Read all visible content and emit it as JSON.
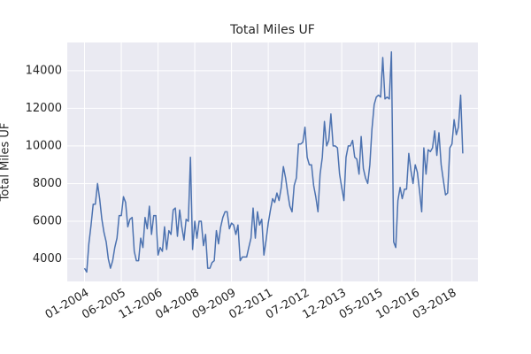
{
  "chart_data": {
    "type": "line",
    "title": "Total Miles UF",
    "ylabel": "Total Miles UF",
    "x": [
      "01-2004",
      "02-2004",
      "03-2004",
      "04-2004",
      "05-2004",
      "06-2004",
      "07-2004",
      "08-2004",
      "09-2004",
      "10-2004",
      "11-2004",
      "12-2004",
      "01-2005",
      "02-2005",
      "03-2005",
      "04-2005",
      "05-2005",
      "06-2005",
      "07-2005",
      "08-2005",
      "09-2005",
      "10-2005",
      "11-2005",
      "12-2005",
      "01-2006",
      "02-2006",
      "03-2006",
      "04-2006",
      "05-2006",
      "06-2006",
      "07-2006",
      "08-2006",
      "09-2006",
      "10-2006",
      "11-2006",
      "12-2006",
      "01-2007",
      "02-2007",
      "03-2007",
      "04-2007",
      "05-2007",
      "06-2007",
      "07-2007",
      "08-2007",
      "09-2007",
      "10-2007",
      "11-2007",
      "12-2007",
      "01-2008",
      "02-2008",
      "03-2008",
      "04-2008",
      "05-2008",
      "06-2008",
      "07-2008",
      "08-2008",
      "09-2008",
      "10-2008",
      "11-2008",
      "12-2008",
      "01-2009",
      "02-2009",
      "03-2009",
      "04-2009",
      "05-2009",
      "06-2009",
      "07-2009",
      "08-2009",
      "09-2009",
      "10-2009",
      "11-2009",
      "12-2009",
      "01-2010",
      "02-2010",
      "03-2010",
      "04-2010",
      "05-2010",
      "06-2010",
      "07-2010",
      "08-2010",
      "09-2010",
      "10-2010",
      "11-2010",
      "12-2010",
      "01-2011",
      "02-2011",
      "03-2011",
      "04-2011",
      "05-2011",
      "06-2011",
      "07-2011",
      "08-2011",
      "09-2011",
      "10-2011",
      "11-2011",
      "12-2011",
      "01-2012",
      "02-2012",
      "03-2012",
      "04-2012",
      "05-2012",
      "06-2012",
      "07-2012",
      "08-2012",
      "09-2012",
      "10-2012",
      "11-2012",
      "12-2012",
      "01-2013",
      "02-2013",
      "03-2013",
      "04-2013",
      "05-2013",
      "06-2013",
      "07-2013",
      "08-2013",
      "09-2013",
      "10-2013",
      "11-2013",
      "12-2013",
      "01-2014",
      "02-2014",
      "03-2014",
      "04-2014",
      "05-2014",
      "06-2014",
      "07-2014",
      "08-2014",
      "09-2014",
      "10-2014",
      "11-2014",
      "12-2014",
      "01-2015",
      "02-2015",
      "03-2015",
      "04-2015",
      "05-2015",
      "06-2015",
      "07-2015",
      "08-2015",
      "09-2015",
      "10-2015",
      "11-2015",
      "12-2015",
      "01-2016",
      "02-2016",
      "03-2016",
      "04-2016",
      "05-2016",
      "06-2016",
      "07-2016",
      "08-2016",
      "09-2016",
      "10-2016",
      "11-2016",
      "12-2016",
      "01-2017",
      "02-2017",
      "03-2017",
      "04-2017",
      "05-2017",
      "06-2017",
      "07-2017",
      "08-2017",
      "09-2017",
      "10-2017",
      "11-2017",
      "12-2017",
      "01-2018",
      "02-2018",
      "03-2018",
      "04-2018",
      "05-2018",
      "06-2018",
      "07-2018",
      "08-2018"
    ],
    "series": [
      {
        "name": "Total Miles UF",
        "color": "#4c72b0",
        "values": [
          3500,
          3300,
          4800,
          5800,
          6900,
          6900,
          8000,
          7200,
          6100,
          5400,
          4900,
          4000,
          3500,
          3900,
          4600,
          5100,
          6300,
          6300,
          7300,
          7000,
          5700,
          6100,
          6200,
          4400,
          3900,
          3900,
          5100,
          4600,
          6200,
          5600,
          6800,
          5300,
          6300,
          6300,
          4200,
          4600,
          4400,
          5700,
          4500,
          5500,
          5300,
          6600,
          6700,
          5200,
          6600,
          5700,
          5000,
          6100,
          6000,
          9400,
          4500,
          6000,
          5100,
          6000,
          6000,
          4700,
          5300,
          3500,
          3500,
          3800,
          3900,
          5500,
          4800,
          5700,
          6200,
          6500,
          6500,
          5600,
          5900,
          5800,
          5300,
          5800,
          3900,
          4100,
          4100,
          4100,
          4600,
          5100,
          6700,
          5100,
          6500,
          5800,
          6100,
          4200,
          5000,
          5900,
          6600,
          7200,
          7000,
          7500,
          7100,
          7800,
          8900,
          8300,
          7500,
          6800,
          6500,
          7900,
          8300,
          10100,
          10100,
          10200,
          11000,
          9400,
          9000,
          9000,
          7900,
          7300,
          6500,
          8500,
          9400,
          11300,
          10000,
          10300,
          11700,
          10000,
          10000,
          9900,
          8500,
          7800,
          7100,
          9400,
          10000,
          10000,
          10300,
          9400,
          9300,
          8500,
          10500,
          8800,
          8300,
          8000,
          9000,
          10900,
          12200,
          12600,
          12700,
          12600,
          14700,
          12500,
          12600,
          12500,
          15000,
          4900,
          4600,
          7100,
          7800,
          7200,
          7700,
          7700,
          9600,
          8700,
          8000,
          9000,
          8600,
          7600,
          6500,
          9900,
          8500,
          9800,
          9700,
          9900,
          10800,
          9500,
          10700,
          9000,
          8200,
          7400,
          7500,
          9900,
          10100,
          11400,
          10600,
          11000,
          12700,
          9600
        ]
      }
    ],
    "xlim": [
      "05-2003",
      "03-2019"
    ],
    "xticks": [
      "01-2004",
      "06-2005",
      "11-2006",
      "04-2008",
      "09-2009",
      "02-2011",
      "07-2012",
      "12-2013",
      "05-2015",
      "10-2016",
      "03-2018"
    ],
    "ylim": [
      2800,
      15500
    ],
    "yticks": [
      4000,
      6000,
      8000,
      10000,
      12000,
      14000
    ],
    "grid": true
  }
}
